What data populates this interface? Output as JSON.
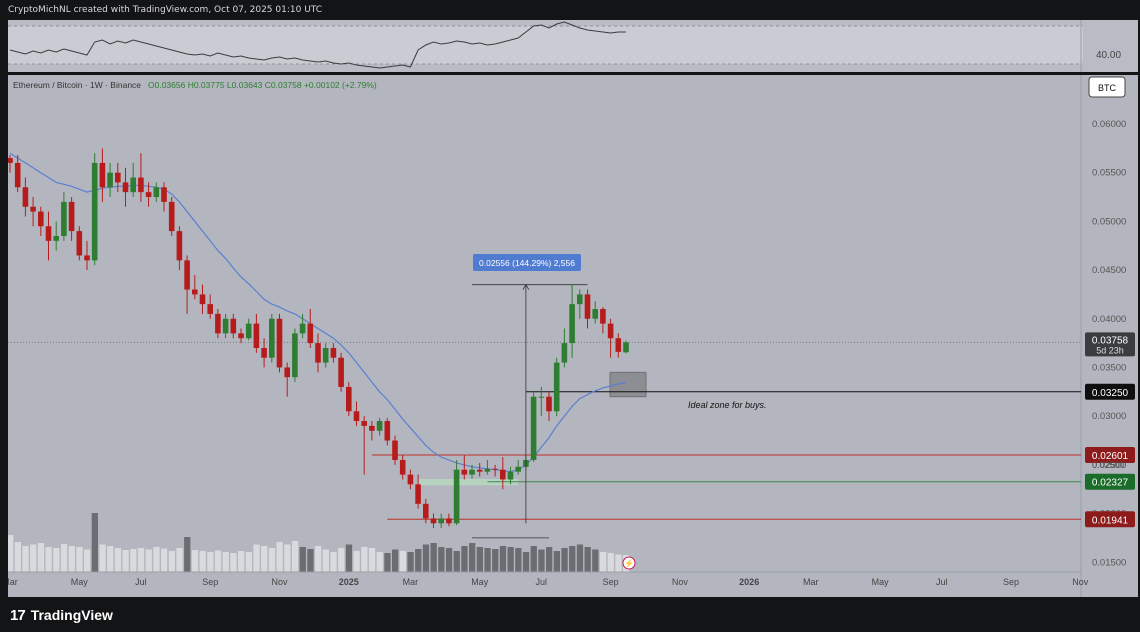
{
  "attribution": "CryptoMichNL created with TradingView.com, Oct 07, 2025 01:10 UTC",
  "footer": {
    "brand": "TradingView",
    "logo": "tradingview-logo-icon"
  },
  "rsi": {
    "level_label": "40.00"
  },
  "currency_badge": "BTC",
  "colors": {
    "up": "#2e7d32",
    "down": "#b71c1c",
    "ma": "#5b7fd1",
    "level_red": "#c0302a",
    "level_green": "#3d8a4a",
    "badge_red": "#8e1b1b",
    "badge_green": "#1b6b2b",
    "badge_black": "#0f0f0f"
  },
  "chart_data": {
    "type": "candlestick",
    "header": {
      "symbol": "Ethereum / Bitcoin · 1W · Binance",
      "ohlc_text": "O0.03656 H0.03775 L0.03643 C0.03758 +0.00102 (+2.79%)"
    },
    "y_axis": {
      "ylim": [
        0.014,
        0.064
      ],
      "ticks": [
        "0.06000",
        "0.05500",
        "0.05000",
        "0.04500",
        "0.04000",
        "0.03500",
        "0.03000",
        "0.02500",
        "0.02000",
        "0.01500"
      ],
      "tick_values": [
        0.06,
        0.055,
        0.05,
        0.045,
        0.04,
        0.035,
        0.03,
        0.025,
        0.02,
        0.015
      ]
    },
    "x_axis": {
      "labels": [
        "Mar",
        "May",
        "Jul",
        "Sep",
        "Nov",
        "2025",
        "Mar",
        "May",
        "Jul",
        "Sep",
        "Nov",
        "2026",
        "Mar",
        "May",
        "Jul",
        "Sep",
        "Nov"
      ],
      "bold": [
        "2025",
        "2026"
      ],
      "week_index": [
        0,
        9,
        17,
        26,
        35,
        44,
        52,
        61,
        69,
        78,
        87,
        96,
        104,
        113,
        121,
        130,
        139
      ]
    },
    "candles": [
      [
        0.0565,
        0.056,
        0.0568,
        0.055
      ],
      [
        0.056,
        0.0535,
        0.0568,
        0.053
      ],
      [
        0.0535,
        0.0515,
        0.0545,
        0.0505
      ],
      [
        0.0515,
        0.051,
        0.0525,
        0.0495
      ],
      [
        0.051,
        0.0495,
        0.0515,
        0.0485
      ],
      [
        0.0495,
        0.048,
        0.051,
        0.046
      ],
      [
        0.048,
        0.0485,
        0.05,
        0.047
      ],
      [
        0.0485,
        0.052,
        0.053,
        0.048
      ],
      [
        0.052,
        0.049,
        0.0525,
        0.048
      ],
      [
        0.049,
        0.0465,
        0.0495,
        0.046
      ],
      [
        0.0465,
        0.046,
        0.048,
        0.045
      ],
      [
        0.046,
        0.056,
        0.057,
        0.0455
      ],
      [
        0.056,
        0.0535,
        0.0575,
        0.052
      ],
      [
        0.0535,
        0.055,
        0.056,
        0.0525
      ],
      [
        0.055,
        0.054,
        0.056,
        0.053
      ],
      [
        0.054,
        0.053,
        0.0555,
        0.0515
      ],
      [
        0.053,
        0.0545,
        0.056,
        0.0525
      ],
      [
        0.0545,
        0.053,
        0.057,
        0.052
      ],
      [
        0.053,
        0.0525,
        0.054,
        0.0515
      ],
      [
        0.0525,
        0.0535,
        0.054,
        0.052
      ],
      [
        0.0535,
        0.052,
        0.054,
        0.051
      ],
      [
        0.052,
        0.049,
        0.0525,
        0.0485
      ],
      [
        0.049,
        0.046,
        0.0495,
        0.045
      ],
      [
        0.046,
        0.043,
        0.0465,
        0.0405
      ],
      [
        0.043,
        0.0425,
        0.0445,
        0.042
      ],
      [
        0.0425,
        0.0415,
        0.0435,
        0.0405
      ],
      [
        0.0415,
        0.0405,
        0.0425,
        0.04
      ],
      [
        0.0405,
        0.0385,
        0.041,
        0.038
      ],
      [
        0.0385,
        0.04,
        0.0405,
        0.038
      ],
      [
        0.04,
        0.0385,
        0.0405,
        0.038
      ],
      [
        0.0385,
        0.038,
        0.039,
        0.0375
      ],
      [
        0.038,
        0.0395,
        0.04,
        0.0378
      ],
      [
        0.0395,
        0.037,
        0.0405,
        0.0365
      ],
      [
        0.037,
        0.036,
        0.038,
        0.035
      ],
      [
        0.036,
        0.04,
        0.0405,
        0.0355
      ],
      [
        0.04,
        0.035,
        0.0405,
        0.0345
      ],
      [
        0.035,
        0.034,
        0.0355,
        0.032
      ],
      [
        0.034,
        0.0385,
        0.039,
        0.0335
      ],
      [
        0.0385,
        0.0395,
        0.0405,
        0.038
      ],
      [
        0.0395,
        0.0375,
        0.041,
        0.037
      ],
      [
        0.0375,
        0.0355,
        0.0385,
        0.0345
      ],
      [
        0.0355,
        0.037,
        0.0375,
        0.035
      ],
      [
        0.037,
        0.036,
        0.0375,
        0.0355
      ],
      [
        0.036,
        0.033,
        0.0365,
        0.0325
      ],
      [
        0.033,
        0.0305,
        0.0335,
        0.03
      ],
      [
        0.0305,
        0.0295,
        0.0315,
        0.029
      ],
      [
        0.0295,
        0.029,
        0.03,
        0.024
      ],
      [
        0.029,
        0.0285,
        0.0295,
        0.0275
      ],
      [
        0.0285,
        0.0295,
        0.0298,
        0.028
      ],
      [
        0.0295,
        0.0275,
        0.0298,
        0.027
      ],
      [
        0.0275,
        0.0255,
        0.028,
        0.025
      ],
      [
        0.0255,
        0.024,
        0.026,
        0.0235
      ],
      [
        0.024,
        0.023,
        0.0245,
        0.0225
      ],
      [
        0.023,
        0.021,
        0.024,
        0.0205
      ],
      [
        0.021,
        0.0195,
        0.0215,
        0.019
      ],
      [
        0.0195,
        0.019,
        0.02,
        0.0185
      ],
      [
        0.019,
        0.0195,
        0.02,
        0.0185
      ],
      [
        0.0195,
        0.019,
        0.02,
        0.0187
      ],
      [
        0.019,
        0.0245,
        0.0255,
        0.0188
      ],
      [
        0.0245,
        0.024,
        0.026,
        0.0235
      ],
      [
        0.024,
        0.0245,
        0.025,
        0.0236
      ],
      [
        0.0245,
        0.0243,
        0.0252,
        0.0238
      ],
      [
        0.0243,
        0.0246,
        0.0255,
        0.024
      ],
      [
        0.0246,
        0.0245,
        0.025,
        0.0238
      ],
      [
        0.0245,
        0.0235,
        0.0258,
        0.0225
      ],
      [
        0.0235,
        0.0243,
        0.0248,
        0.023
      ],
      [
        0.0243,
        0.0248,
        0.0255,
        0.024
      ],
      [
        0.0248,
        0.0255,
        0.026,
        0.0245
      ],
      [
        0.0255,
        0.032,
        0.0325,
        0.0253
      ],
      [
        0.032,
        0.032,
        0.033,
        0.03
      ],
      [
        0.032,
        0.0305,
        0.0325,
        0.0295
      ],
      [
        0.0305,
        0.0355,
        0.036,
        0.03
      ],
      [
        0.0355,
        0.0375,
        0.039,
        0.035
      ],
      [
        0.0375,
        0.0415,
        0.0435,
        0.036
      ],
      [
        0.0415,
        0.0425,
        0.043,
        0.04
      ],
      [
        0.0425,
        0.04,
        0.043,
        0.039
      ],
      [
        0.04,
        0.041,
        0.0418,
        0.0395
      ],
      [
        0.041,
        0.0395,
        0.0412,
        0.0385
      ],
      [
        0.0395,
        0.038,
        0.04,
        0.036
      ],
      [
        0.038,
        0.0366,
        0.0385,
        0.036
      ],
      [
        0.03656,
        0.03758,
        0.03775,
        0.03643
      ]
    ],
    "ma": [
      0.057,
      0.0565,
      0.056,
      0.0555,
      0.055,
      0.0545,
      0.054,
      0.0538,
      0.0536,
      0.0533,
      0.053,
      0.0532,
      0.0534,
      0.0535,
      0.0536,
      0.0536,
      0.0537,
      0.0537,
      0.0536,
      0.0535,
      0.0533,
      0.0528,
      0.052,
      0.051,
      0.05,
      0.049,
      0.048,
      0.047,
      0.0462,
      0.0452,
      0.0443,
      0.0436,
      0.0428,
      0.042,
      0.0415,
      0.0412,
      0.0408,
      0.0405,
      0.04,
      0.0395,
      0.039,
      0.0385,
      0.038,
      0.0373,
      0.0365,
      0.0355,
      0.0345,
      0.0335,
      0.0325,
      0.0317,
      0.0307,
      0.0297,
      0.0288,
      0.0279,
      0.027,
      0.0263,
      0.0258,
      0.0255,
      0.0252,
      0.025,
      0.0248,
      0.0247,
      0.0246,
      0.0245,
      0.0244,
      0.0243,
      0.0245,
      0.025,
      0.0258,
      0.0268,
      0.0278,
      0.029,
      0.03,
      0.031,
      0.0318,
      0.0322,
      0.0326,
      0.0329,
      0.0331,
      0.0333,
      0.03345
    ],
    "volume": [
      74,
      60,
      52,
      55,
      58,
      50,
      48,
      56,
      52,
      50,
      45,
      118,
      55,
      52,
      48,
      44,
      46,
      48,
      45,
      50,
      47,
      42,
      48,
      70,
      44,
      42,
      40,
      43,
      40,
      38,
      42,
      40,
      55,
      52,
      48,
      60,
      55,
      62,
      50,
      46,
      52,
      45,
      40,
      48,
      55,
      42,
      50,
      48,
      40,
      38,
      45,
      42,
      40,
      46,
      55,
      58,
      50,
      48,
      42,
      52,
      58,
      50,
      48,
      46,
      52,
      50,
      48,
      40,
      52,
      45,
      50,
      42,
      48,
      52,
      55,
      50,
      45,
      40,
      38,
      35,
      34
    ],
    "volume_dark": [
      11,
      23,
      38,
      39,
      44,
      49,
      50,
      52,
      53,
      54,
      55,
      56,
      57,
      58,
      59,
      60,
      61,
      62,
      63,
      64,
      65,
      66,
      67,
      68,
      69,
      70,
      71,
      72,
      73,
      74,
      75,
      76
    ],
    "levels": [
      {
        "value": 0.0325,
        "label": "0.03250",
        "style": "black",
        "from_week": 67
      },
      {
        "value": 0.02601,
        "label": "0.02601",
        "style": "red",
        "from_week": 47
      },
      {
        "value": 0.02327,
        "label": "0.02327",
        "style": "green",
        "from_week": 62
      },
      {
        "value": 0.01941,
        "label": "0.01941",
        "style": "red",
        "from_week": 49
      }
    ],
    "current_price": {
      "label": "0.03758",
      "countdown": "5d 23h",
      "value": 0.03758
    },
    "annotations": {
      "measure_label": "0.02556 (144.29%) 2,556",
      "zone_label": "Ideal zone for buys.",
      "hidden_tick": "0.02500"
    }
  }
}
